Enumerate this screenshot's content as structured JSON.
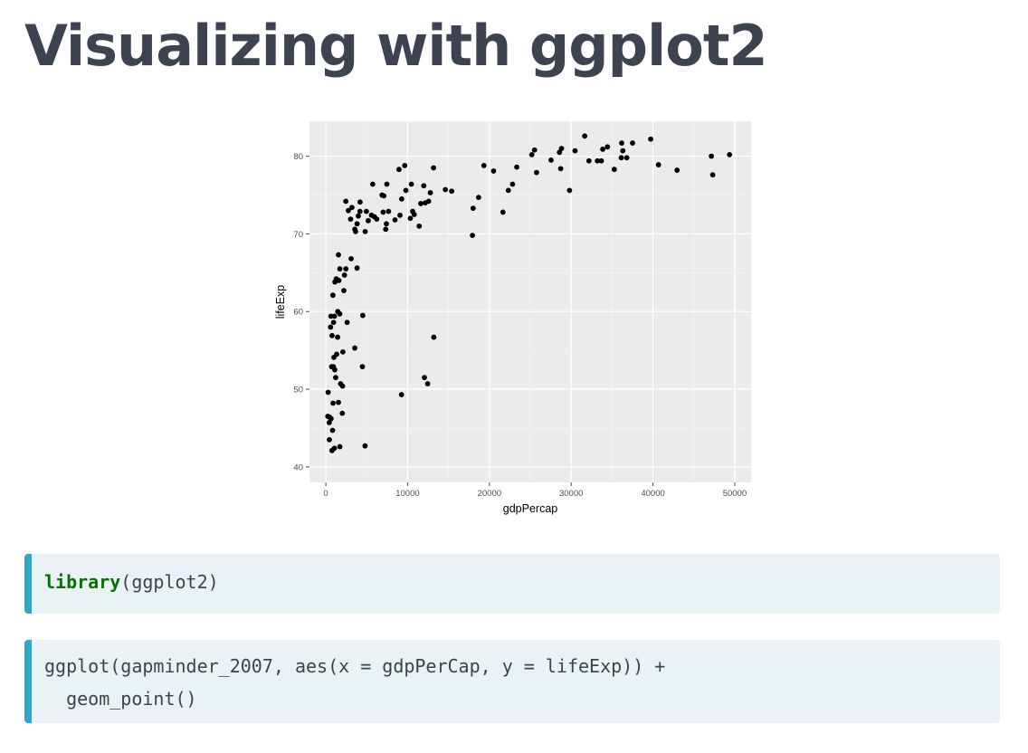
{
  "page": {
    "title": "Visualizing with ggplot2"
  },
  "colors": {
    "title": "#3d4351",
    "code_bg": "#eaf2f5",
    "code_border": "#2fa7c9",
    "keyword": "#007400",
    "panel_bg": "#ebebeb"
  },
  "code_blocks": [
    {
      "keyword": "library",
      "rest": "(ggplot2)"
    },
    {
      "line1": "ggplot(gapminder_2007, aes(x = gdpPerCap, y = lifeExp)) +",
      "line2": "  geom_point()"
    }
  ],
  "chart_data": {
    "type": "scatter",
    "xlabel": "gdpPercap",
    "ylabel": "lifeExp",
    "xlim": [
      -2000,
      52000
    ],
    "ylim": [
      38,
      84.5
    ],
    "x_ticks": [
      0,
      10000,
      20000,
      30000,
      40000,
      50000
    ],
    "x_tick_labels": [
      "0",
      "10000",
      "20000",
      "30000",
      "40000",
      "50000"
    ],
    "y_ticks": [
      40,
      50,
      60,
      70,
      80
    ],
    "y_tick_labels": [
      "40",
      "50",
      "60",
      "70",
      "80"
    ],
    "grid": true,
    "points": [
      [
        49357,
        80.2
      ],
      [
        47143,
        80.0
      ],
      [
        47307,
        77.6
      ],
      [
        42952,
        78.2
      ],
      [
        40676,
        78.9
      ],
      [
        39725,
        82.2
      ],
      [
        37506,
        81.7
      ],
      [
        36798,
        79.8
      ],
      [
        36181,
        81.7
      ],
      [
        36319,
        80.7
      ],
      [
        36126,
        79.8
      ],
      [
        35278,
        78.3
      ],
      [
        34435,
        81.2
      ],
      [
        33860,
        80.9
      ],
      [
        33693,
        79.4
      ],
      [
        33207,
        79.4
      ],
      [
        32170,
        79.4
      ],
      [
        31656,
        82.6
      ],
      [
        30470,
        80.7
      ],
      [
        29796,
        75.6
      ],
      [
        28821,
        81.0
      ],
      [
        28570,
        80.5
      ],
      [
        28718,
        78.4
      ],
      [
        27538,
        79.5
      ],
      [
        25768,
        77.9
      ],
      [
        25523,
        80.8
      ],
      [
        25185,
        80.2
      ],
      [
        23348,
        78.6
      ],
      [
        22833,
        76.4
      ],
      [
        22316,
        75.6
      ],
      [
        21655,
        72.8
      ],
      [
        20510,
        78.1
      ],
      [
        19328,
        78.8
      ],
      [
        18678,
        74.7
      ],
      [
        18009,
        73.3
      ],
      [
        17924,
        69.8
      ],
      [
        15390,
        75.5
      ],
      [
        14619,
        75.7
      ],
      [
        13172,
        78.5
      ],
      [
        13206,
        56.7
      ],
      [
        12779,
        75.3
      ],
      [
        12570,
        74.2
      ],
      [
        12452,
        50.7
      ],
      [
        12154,
        74.0
      ],
      [
        12057,
        51.5
      ],
      [
        11978,
        76.2
      ],
      [
        11605,
        73.9
      ],
      [
        11415,
        71.0
      ],
      [
        10808,
        72.5
      ],
      [
        10611,
        72.9
      ],
      [
        10461,
        76.4
      ],
      [
        10331,
        72.0
      ],
      [
        9645,
        78.8
      ],
      [
        9787,
        75.6
      ],
      [
        9269,
        74.5
      ],
      [
        9253,
        49.3
      ],
      [
        9065,
        72.4
      ],
      [
        8948,
        78.3
      ],
      [
        8458,
        71.8
      ],
      [
        7670,
        72.9
      ],
      [
        7458,
        76.4
      ],
      [
        7408,
        71.3
      ],
      [
        7320,
        70.6
      ],
      [
        7092,
        74.9
      ],
      [
        7007,
        72.8
      ],
      [
        6873,
        75.0
      ],
      [
        6223,
        71.9
      ],
      [
        5937,
        72.2
      ],
      [
        5728,
        76.4
      ],
      [
        5581,
        72.4
      ],
      [
        5187,
        71.7
      ],
      [
        4959,
        72.9
      ],
      [
        4811,
        70.3
      ],
      [
        4797,
        42.7
      ],
      [
        4471,
        52.9
      ],
      [
        4513,
        59.5
      ],
      [
        4173,
        72.9
      ],
      [
        4184,
        74.1
      ],
      [
        3970,
        72.3
      ],
      [
        3822,
        71.3
      ],
      [
        3820,
        65.6
      ],
      [
        3632,
        70.3
      ],
      [
        3548,
        70.6
      ],
      [
        3540,
        55.3
      ],
      [
        3190,
        73.4
      ],
      [
        3095,
        66.8
      ],
      [
        3025,
        71.9
      ],
      [
        2749,
        73.0
      ],
      [
        2602,
        58.6
      ],
      [
        2452,
        65.5
      ],
      [
        2441,
        74.2
      ],
      [
        2280,
        64.7
      ],
      [
        2202,
        62.7
      ],
      [
        2082,
        54.8
      ],
      [
        2042,
        50.4
      ],
      [
        2013,
        46.9
      ],
      [
        1803,
        50.7
      ],
      [
        1713,
        42.6
      ],
      [
        1712,
        65.5
      ],
      [
        1704,
        59.7
      ],
      [
        1598,
        64.0
      ],
      [
        1545,
        48.3
      ],
      [
        1544,
        67.3
      ],
      [
        1463,
        60.0
      ],
      [
        1441,
        56.7
      ],
      [
        1328,
        54.5
      ],
      [
        1271,
        64.2
      ],
      [
        1201,
        51.5
      ],
      [
        1107,
        63.8
      ],
      [
        1091,
        52.5
      ],
      [
        1056,
        59.4
      ],
      [
        1043,
        42.4
      ],
      [
        986,
        54.1
      ],
      [
        943,
        58.6
      ],
      [
        926,
        52.9
      ],
      [
        883,
        48.2
      ],
      [
        863,
        62.1
      ],
      [
        824,
        44.7
      ],
      [
        759,
        56.9
      ],
      [
        753,
        42.1
      ],
      [
        706,
        52.9
      ],
      [
        641,
        46.2
      ],
      [
        620,
        59.4
      ],
      [
        580,
        58.0
      ],
      [
        469,
        46.4
      ],
      [
        430,
        43.5
      ],
      [
        415,
        45.7
      ],
      [
        278,
        49.6
      ],
      [
        241,
        46.5
      ]
    ]
  }
}
